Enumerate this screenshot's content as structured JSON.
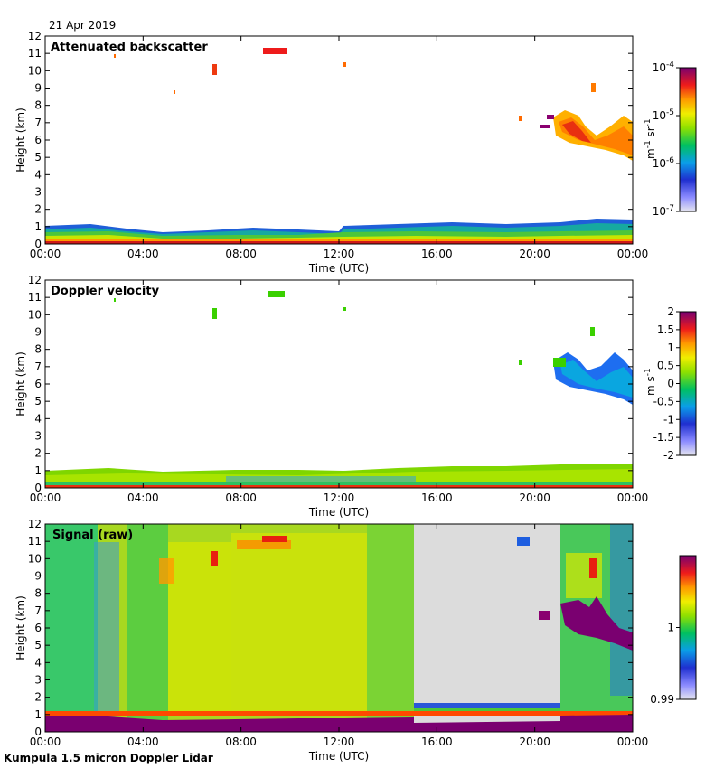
{
  "header": {
    "date": "21 Apr 2019"
  },
  "footer": {
    "instrument": "Kumpula 1.5 micron Doppler Lidar"
  },
  "chart_data": [
    {
      "type": "heatmap",
      "id": "backscatter",
      "title": "Attenuated backscatter",
      "xlabel": "Time (UTC)",
      "ylabel": "Height (km)",
      "x_tick_labels": [
        "00:00",
        "04:00",
        "08:00",
        "12:00",
        "16:00",
        "20:00",
        "00:00"
      ],
      "xlim_hours": [
        0,
        24
      ],
      "ylim": [
        0,
        12
      ],
      "y_ticks": [
        0,
        1,
        2,
        3,
        4,
        5,
        6,
        7,
        8,
        9,
        10,
        11,
        12
      ],
      "colorbar": {
        "scale": "log",
        "range": [
          1e-07,
          0.0001
        ],
        "tick_labels": [
          {
            "base": "10",
            "exp": "-4"
          },
          {
            "base": "10",
            "exp": "-5"
          },
          {
            "base": "10",
            "exp": "-6"
          },
          {
            "base": "10",
            "exp": "-7"
          }
        ],
        "unit_parts": [
          "m",
          "-1",
          " sr",
          "-1"
        ]
      },
      "features": [
        {
          "name": "boundary layer aerosol",
          "time_h": [
            0,
            24
          ],
          "height_km": [
            0,
            1.2
          ]
        },
        {
          "name": "cirrus",
          "time_h": [
            20.5,
            24
          ],
          "height_km": [
            5,
            8.5
          ]
        },
        {
          "name": "sparse high returns",
          "time_h": [
            2.7,
            12.3
          ],
          "height_km": [
            8.6,
            11.2
          ]
        }
      ]
    },
    {
      "type": "heatmap",
      "id": "velocity",
      "title": "Doppler velocity",
      "xlabel": "Time (UTC)",
      "ylabel": "Height (km)",
      "x_tick_labels": [
        "00:00",
        "04:00",
        "08:00",
        "12:00",
        "16:00",
        "20:00",
        "00:00"
      ],
      "xlim_hours": [
        0,
        24
      ],
      "ylim": [
        0,
        12
      ],
      "y_ticks": [
        0,
        1,
        2,
        3,
        4,
        5,
        6,
        7,
        8,
        9,
        10,
        11,
        12
      ],
      "colorbar": {
        "scale": "linear",
        "range": [
          -2,
          2
        ],
        "tick_labels": [
          "2",
          "1.5",
          "1",
          "0.5",
          "0",
          "-0.5",
          "-1",
          "-1.5",
          "-2"
        ],
        "unit_parts": [
          "m s",
          "-1"
        ]
      },
      "features": [
        {
          "name": "boundary layer",
          "time_h": [
            0,
            24
          ],
          "height_km": [
            0,
            1.3
          ]
        },
        {
          "name": "cirrus",
          "time_h": [
            19.5,
            24
          ],
          "height_km": [
            4.8,
            9.3
          ]
        }
      ]
    },
    {
      "type": "heatmap",
      "id": "signal",
      "title": "Signal (raw)",
      "xlabel": "Time (UTC)",
      "ylabel": "Height (km)",
      "x_tick_labels": [
        "00:00",
        "04:00",
        "08:00",
        "12:00",
        "16:00",
        "20:00",
        "00:00"
      ],
      "xlim_hours": [
        0,
        24
      ],
      "ylim": [
        0,
        12
      ],
      "y_ticks": [
        0,
        1,
        2,
        3,
        4,
        5,
        6,
        7,
        8,
        9,
        10,
        11,
        12
      ],
      "colorbar": {
        "scale": "linear",
        "range": [
          0.99,
          1.01
        ],
        "tick_labels": [
          "1",
          "0.99"
        ]
      },
      "features": [
        {
          "name": "strong near-surface signal",
          "time_h": [
            0,
            24
          ],
          "height_km": [
            0,
            1.2
          ]
        },
        {
          "name": "data gap (grey)",
          "time_h": [
            15,
            21
          ],
          "height_km": [
            1.5,
            12
          ]
        },
        {
          "name": "cirrus",
          "time_h": [
            21,
            24
          ],
          "height_km": [
            4.7,
            7.5
          ]
        }
      ]
    }
  ]
}
